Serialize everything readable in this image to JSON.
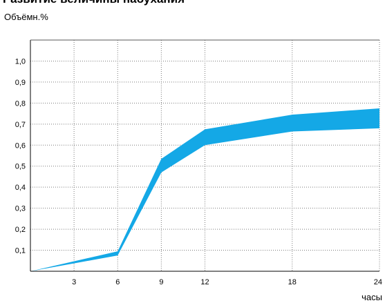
{
  "chart_data": {
    "type": "area",
    "title": "Развитие величины набухания",
    "ylabel": "Объёмн.%",
    "xlabel": "часы",
    "xlim": [
      0,
      24
    ],
    "ylim": [
      0,
      1.1
    ],
    "x_ticks": [
      3,
      6,
      9,
      12,
      18,
      24
    ],
    "y_ticks": [
      0.1,
      0.2,
      0.3,
      0.4,
      0.5,
      0.6,
      0.7,
      0.8,
      0.9,
      1.0
    ],
    "y_tick_labels": [
      "0,1",
      "0,2",
      "0,3",
      "0,4",
      "0,5",
      "0,6",
      "0,7",
      "0,8",
      "0,9",
      "1,0"
    ],
    "grid": true,
    "fill_color": "#14a8e6",
    "band": {
      "x": [
        0,
        6,
        9,
        12,
        18,
        24
      ],
      "upper": [
        0,
        0.095,
        0.535,
        0.675,
        0.745,
        0.775
      ],
      "lower": [
        0,
        0.075,
        0.47,
        0.6,
        0.665,
        0.68
      ]
    }
  }
}
